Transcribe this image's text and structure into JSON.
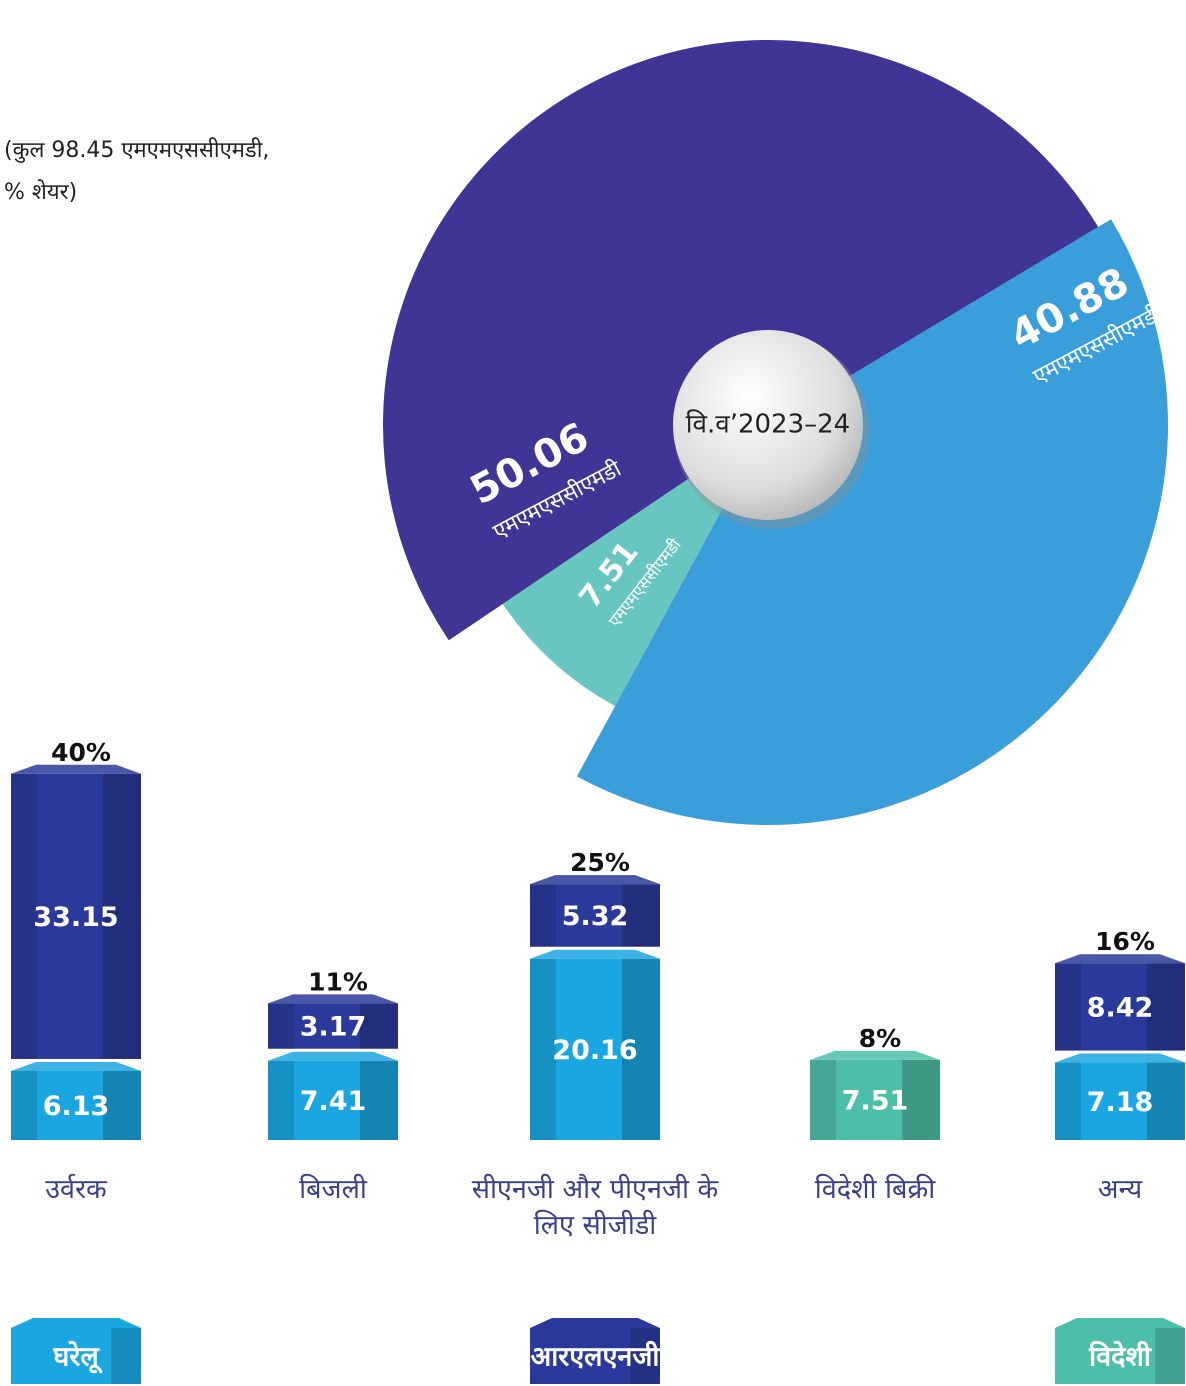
{
  "chart_data": [
    {
      "type": "pie",
      "note": [
        "(कुल 98.45 एमएमएससीएमडी,",
        "% शेयर)"
      ],
      "center_label": "वि.व’2023–24",
      "unit": "एमएमएससीएमडी",
      "values": [
        50.06,
        40.88,
        7.51
      ],
      "colors": [
        "#3f3594",
        "#3a9edb",
        "#67c6bf"
      ]
    },
    {
      "type": "bar",
      "stacked": true,
      "categories": [
        "उर्वरक",
        "बिजली",
        "सीएनजी और पीएनजी के लिए सीजीडी",
        "विदेशी बिक्री",
        "अन्य"
      ],
      "shares": [
        40,
        11,
        25,
        8,
        16
      ],
      "share_labels": [
        "40%",
        "11%",
        "25%",
        "8%",
        "16%"
      ],
      "series": [
        {
          "name": "घरेलू",
          "color": "#1aa6e0",
          "values": [
            6.13,
            7.41,
            20.16,
            null,
            7.18
          ]
        },
        {
          "name": "आरएलएनजी",
          "color": "#2b3a9a",
          "values": [
            33.15,
            3.17,
            5.32,
            null,
            8.42
          ]
        },
        {
          "name": "विदेशी",
          "color": "#4dbfa8",
          "values": [
            null,
            null,
            null,
            7.51,
            null
          ]
        }
      ]
    }
  ]
}
